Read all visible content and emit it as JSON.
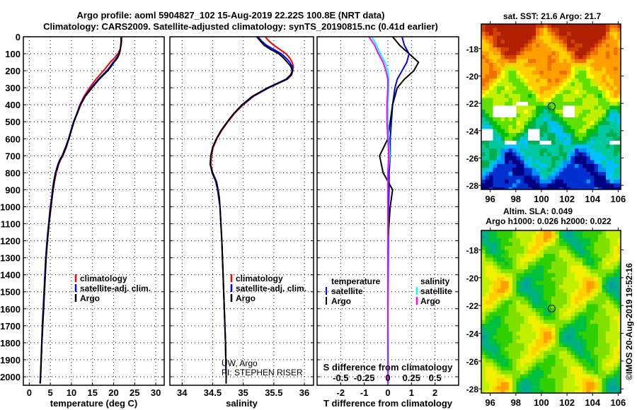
{
  "title_line1": "Argo profile: aoml 5904827_102 15-Aug-2019 22.22S 100.8E (NRT data)",
  "title_line2": "Climatology: CARS2009. Satellite-adjusted climatology: synTS_20190815.nc (0.41d earlier)",
  "watermark": "©IMOS 20-Aug-2019 19:52:16",
  "pi_text": [
    "UW, Argo",
    "PI: STEPHEN RISER"
  ],
  "diff_legend": {
    "temperature_heading": "temperature",
    "salinity_heading": "salinity",
    "t_items": [
      {
        "label": "satellite",
        "color": "#0000ff"
      },
      {
        "label": "Argo",
        "color": "#000000"
      }
    ],
    "s_items": [
      {
        "label": "satellite",
        "color": "#00ffff"
      },
      {
        "label": "Argo",
        "color": "#ff00ff"
      }
    ]
  },
  "chart_data": [
    {
      "type": "line",
      "name": "temperature-profile",
      "xlabel": "temperature (deg C)",
      "xlim": [
        -1.4,
        32
      ],
      "xticks": [
        0,
        5,
        10,
        15,
        20,
        25,
        30
      ],
      "ylim": [
        0,
        2050
      ],
      "yticks": [
        0,
        100,
        200,
        300,
        400,
        500,
        600,
        700,
        800,
        900,
        1000,
        1100,
        1200,
        1300,
        1400,
        1500,
        1600,
        1700,
        1800,
        1900,
        2000
      ],
      "legend": [
        "climatology",
        "satellite-adj. clim.",
        "Argo"
      ],
      "depth": [
        0,
        25,
        50,
        75,
        100,
        125,
        150,
        175,
        200,
        250,
        300,
        350,
        400,
        450,
        500,
        550,
        600,
        650,
        700,
        725,
        750,
        775,
        800,
        850,
        900,
        950,
        1000,
        1100,
        1200,
        1300,
        1400,
        1500,
        1600,
        1700,
        1800,
        1900,
        2000,
        2040
      ],
      "series": [
        {
          "name": "climatology",
          "color": "#ff0000",
          "values": [
            21.9,
            21.9,
            21.8,
            21.5,
            21.0,
            20.2,
            19.2,
            18.4,
            17.6,
            15.8,
            14.3,
            13.0,
            12.0,
            11.3,
            10.6,
            10.0,
            9.4,
            8.8,
            8.0,
            7.4,
            7.0,
            6.7,
            6.4,
            6.0,
            5.7,
            5.4,
            5.2,
            4.7,
            4.3,
            4.0,
            3.8,
            3.6,
            3.4,
            3.2,
            3.0,
            2.85,
            2.7,
            2.6
          ]
        },
        {
          "name": "satellite-adj. clim.",
          "color": "#0000ff",
          "values": [
            21.8,
            21.8,
            21.7,
            21.6,
            21.3,
            20.7,
            19.9,
            19.2,
            18.4,
            16.4,
            14.7,
            13.2,
            12.1,
            11.3,
            10.5,
            9.9,
            9.3,
            8.6,
            7.8,
            7.2,
            6.8,
            6.5,
            6.2,
            5.8,
            5.5,
            5.3,
            5.0,
            4.6,
            4.2,
            3.9,
            3.7,
            3.5,
            3.3,
            3.1,
            2.95,
            2.8,
            2.65,
            2.55
          ]
        },
        {
          "name": "Argo",
          "color": "#000000",
          "values": [
            21.8,
            21.8,
            21.7,
            21.6,
            21.4,
            20.9,
            20.1,
            19.4,
            18.6,
            16.6,
            14.9,
            13.3,
            12.2,
            11.4,
            10.6,
            10.0,
            9.4,
            8.7,
            7.9,
            7.3,
            6.9,
            6.6,
            6.3,
            5.9,
            5.6,
            5.4,
            5.1,
            4.7,
            4.3,
            4.0,
            3.8,
            3.6,
            3.4,
            3.2,
            3.0,
            2.85,
            2.7,
            2.6
          ]
        }
      ]
    },
    {
      "type": "line",
      "name": "salinity-profile",
      "xlabel": "salinity",
      "xlim": [
        33.8,
        36.15
      ],
      "xticks": [
        34,
        34.5,
        35,
        35.5,
        36
      ],
      "ylim": [
        0,
        2050
      ],
      "legend": [
        "climatology",
        "satellite-adj. clim.",
        "Argo"
      ],
      "depth": [
        0,
        25,
        50,
        75,
        100,
        125,
        150,
        175,
        200,
        225,
        250,
        300,
        350,
        400,
        450,
        500,
        550,
        600,
        650,
        700,
        750,
        800,
        850,
        900,
        950,
        1000,
        1200,
        1400,
        1600,
        1800,
        2000,
        2040
      ],
      "series": [
        {
          "name": "climatology",
          "color": "#ff0000",
          "values": [
            35.36,
            35.42,
            35.5,
            35.6,
            35.7,
            35.76,
            35.8,
            35.82,
            35.81,
            35.77,
            35.7,
            35.42,
            35.17,
            35.0,
            34.86,
            34.75,
            34.65,
            34.57,
            34.51,
            34.48,
            34.47,
            34.5,
            34.55,
            34.58,
            34.6,
            34.62,
            34.65,
            34.67,
            34.69,
            34.71,
            34.72,
            34.72
          ]
        },
        {
          "name": "satellite-adj. clim.",
          "color": "#0000ff",
          "values": [
            35.24,
            35.3,
            35.38,
            35.5,
            35.62,
            35.7,
            35.76,
            35.8,
            35.81,
            35.79,
            35.72,
            35.42,
            35.16,
            34.99,
            34.85,
            34.74,
            34.64,
            34.56,
            34.5,
            34.47,
            34.46,
            34.49,
            34.55,
            34.58,
            34.6,
            34.62,
            34.65,
            34.67,
            34.69,
            34.71,
            34.72,
            34.72
          ]
        },
        {
          "name": "Argo",
          "color": "#000000",
          "values": [
            35.22,
            35.28,
            35.34,
            35.45,
            35.58,
            35.66,
            35.72,
            35.78,
            35.8,
            35.78,
            35.7,
            35.4,
            35.15,
            34.98,
            34.85,
            34.74,
            34.64,
            34.56,
            34.5,
            34.47,
            34.46,
            34.5,
            34.56,
            34.59,
            34.61,
            34.62,
            34.65,
            34.67,
            34.69,
            34.71,
            34.72,
            34.72
          ]
        }
      ]
    },
    {
      "type": "line",
      "name": "difference-profile",
      "xlabel": "T difference from climatology",
      "xlim": [
        -3,
        3
      ],
      "xticks": [
        -2,
        -1,
        0,
        1,
        2
      ],
      "s_axis_label": "S difference from climatology",
      "s_ticks": [
        -0.5,
        -0.25,
        0,
        0.25,
        0.5
      ],
      "s_tick_labels": [
        "-0.5",
        "-0.25",
        "0",
        "0.25",
        "0.5"
      ],
      "s_per_t": 0.25,
      "ylim": [
        0,
        2050
      ],
      "depth": [
        0,
        50,
        100,
        150,
        200,
        250,
        300,
        400,
        500,
        600,
        700,
        800,
        900,
        1000,
        1200,
        1500,
        2000,
        2040
      ],
      "series": [
        {
          "name": "T satellite",
          "kind": "T",
          "color": "#0000ff",
          "values": [
            0.6,
            0.7,
            0.9,
            0.8,
            0.6,
            0.4,
            0.3,
            0.2,
            0.15,
            0.1,
            0.1,
            0.05,
            0.05,
            0.03,
            0.02,
            0.01,
            0,
            0
          ]
        },
        {
          "name": "T Argo",
          "kind": "T",
          "color": "#000000",
          "values": [
            0.2,
            0.5,
            0.9,
            1.3,
            1.1,
            0.7,
            0.4,
            0.2,
            0.1,
            0.0,
            -0.35,
            -0.2,
            0.2,
            0.1,
            0.0,
            0.0,
            0.0,
            0.0
          ]
        },
        {
          "name": "S satellite",
          "kind": "S",
          "color": "#00ffff",
          "values": [
            -0.17,
            -0.12,
            -0.08,
            -0.03,
            0.0,
            0.01,
            0.01,
            0.0,
            0.0,
            0.01,
            0.02,
            0.0,
            0.0,
            0.0,
            0.0,
            0.0,
            0.01,
            0.01
          ]
        },
        {
          "name": "S Argo",
          "kind": "S",
          "color": "#ff00ff",
          "values": [
            -0.2,
            -0.14,
            -0.1,
            -0.05,
            -0.02,
            0.0,
            0.0,
            -0.01,
            -0.01,
            0.0,
            0.01,
            0.0,
            0.0,
            0.0,
            0.0,
            0.0,
            0.0,
            0.0
          ]
        }
      ]
    },
    {
      "type": "heatmap",
      "name": "sst-map",
      "title": "sat. SST: 21.6 Argo: 21.7",
      "xlim": [
        95.3,
        106.2
      ],
      "ylim": [
        -28.3,
        -16.2
      ],
      "xticks": [
        96,
        98,
        100,
        102,
        104,
        106
      ],
      "yticks": [
        -18,
        -20,
        -22,
        -24,
        -26,
        -28
      ],
      "marker": {
        "lon": 100.8,
        "lat": -22.22
      }
    },
    {
      "type": "heatmap",
      "name": "sla-map",
      "title": "Altim. SLA: 0.049",
      "subtitle": "Argo h1000: 0.026 h2000: 0.022",
      "xlim": [
        95.3,
        106.2
      ],
      "ylim": [
        -28.3,
        -16.6
      ],
      "xticks": [
        96,
        98,
        100,
        102,
        104,
        106
      ],
      "yticks": [
        -18,
        -20,
        -22,
        -24,
        -26,
        -28
      ],
      "marker": {
        "lon": 100.8,
        "lat": -22.22
      }
    }
  ]
}
